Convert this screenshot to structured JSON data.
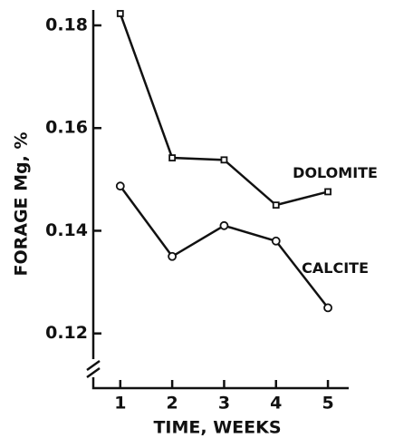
{
  "chart_data": {
    "type": "line",
    "x_label": "TIME, WEEKS",
    "y_label": "FORAGE Mg, %",
    "x": [
      1,
      2,
      3,
      4,
      5
    ],
    "series": [
      {
        "name": "DOLOMITE",
        "color": "#111111",
        "marker": "square",
        "values": [
          0.1823,
          0.1542,
          0.1538,
          0.145,
          0.1476
        ]
      },
      {
        "name": "CALCITE",
        "color": "#111111",
        "marker": "circle",
        "values": [
          0.1487,
          0.135,
          0.141,
          0.138,
          0.125
        ]
      }
    ],
    "xlim": [
      0.48,
      5.4
    ],
    "xticks": [
      1,
      2,
      3,
      4,
      5
    ],
    "ylim": [
      0.115,
      0.183
    ],
    "yticks": [
      0.12,
      0.14,
      0.16,
      0.18
    ]
  }
}
